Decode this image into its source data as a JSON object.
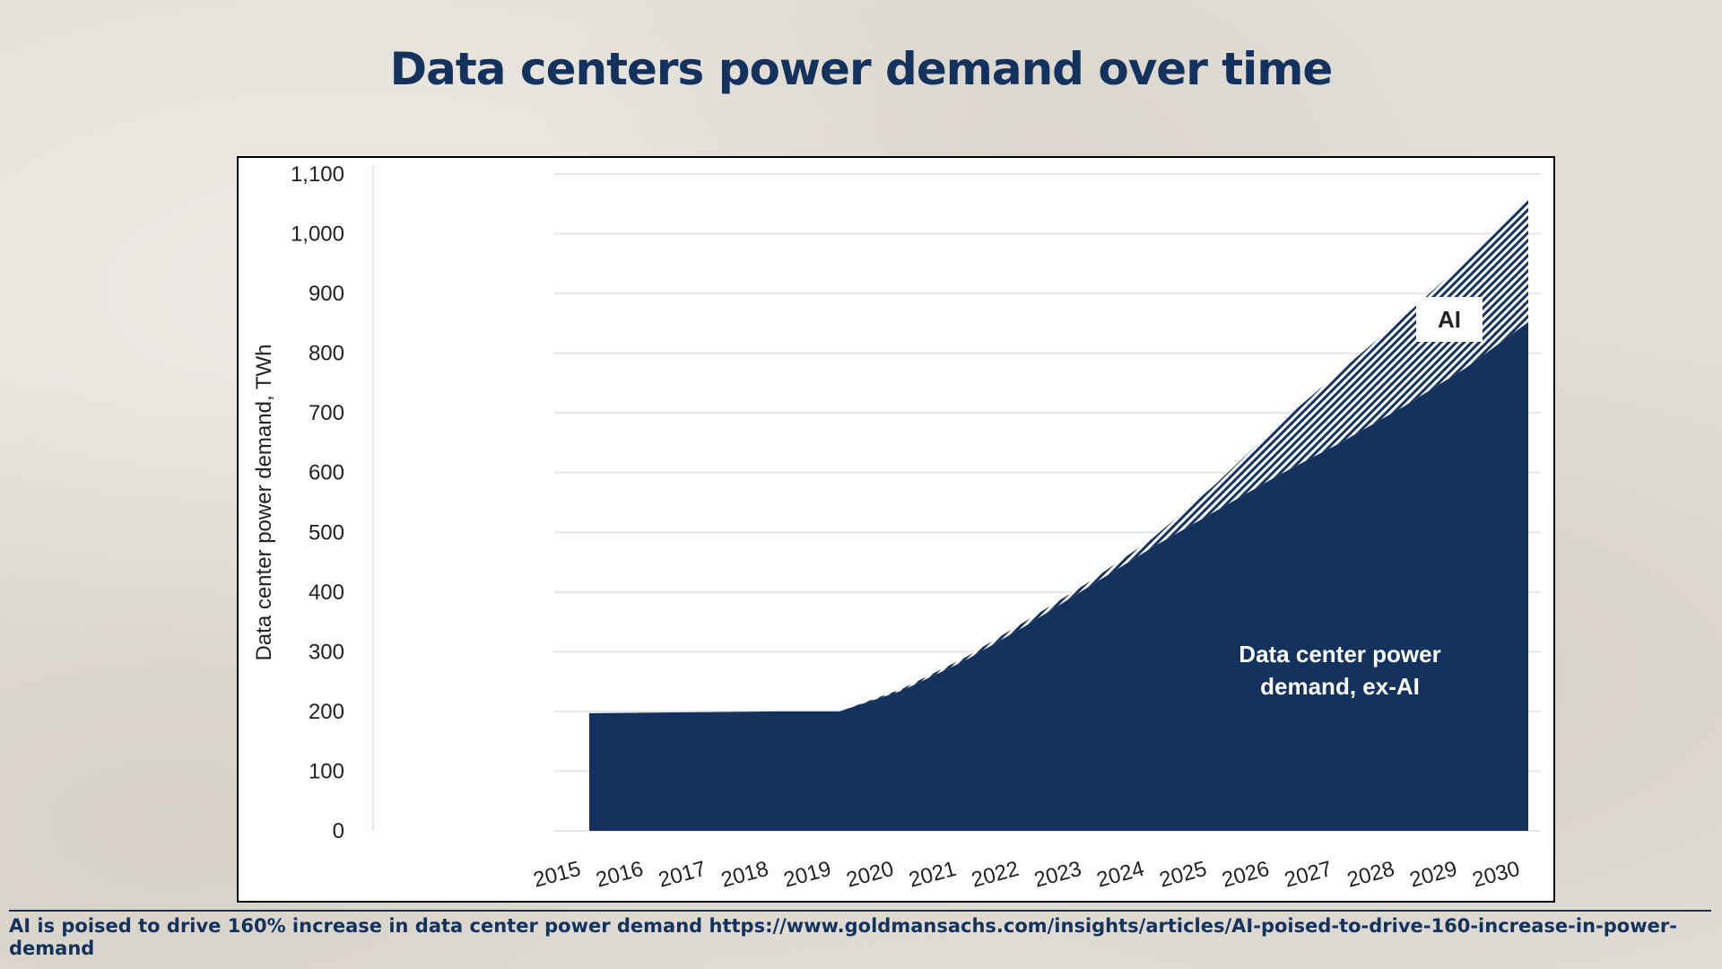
{
  "title": "Data centers power demand over time",
  "source": "AI is poised to drive 160% increase in data center power demand https://www.goldmansachs.com/insights/articles/AI-poised-to-drive-160-increase-in-power-demand",
  "colors": {
    "navy": "#14325e",
    "background": "#e4e0d8",
    "grid": "#e6e6e6"
  },
  "chart_data": {
    "type": "area",
    "stacked": true,
    "ylabel": "Data center power demand, TWh",
    "ylim": [
      0,
      1100
    ],
    "yticks": [
      0,
      100,
      200,
      300,
      400,
      500,
      600,
      700,
      800,
      900,
      1000,
      1100
    ],
    "ytick_labels": [
      "0",
      "100",
      "200",
      "300",
      "400",
      "500",
      "600",
      "700",
      "800",
      "900",
      "1,000",
      "1,100"
    ],
    "categories": [
      "2015",
      "2016",
      "2017",
      "2018",
      "2019",
      "2020",
      "2021",
      "2022",
      "2023",
      "2024",
      "2025",
      "2026",
      "2027",
      "2028",
      "2029",
      "2030"
    ],
    "grid": true,
    "series": [
      {
        "name": "Data center power demand, ex-AI",
        "fill": "solid navy",
        "values": [
          197,
          198,
          199,
          200,
          200,
          235,
          285,
          345,
          410,
          475,
          535,
          595,
          650,
          710,
          775,
          852
        ]
      },
      {
        "name": "AI",
        "fill": "hatched navy",
        "values": [
          0,
          0,
          0,
          0,
          0,
          3,
          5,
          8,
          8,
          15,
          45,
          85,
          120,
          150,
          180,
          210
        ]
      }
    ],
    "annotations": [
      {
        "text_lines": [
          "Data center power",
          "demand, ex-AI"
        ],
        "series": "Data center power demand, ex-AI"
      },
      {
        "text": "AI",
        "series": "AI"
      }
    ]
  }
}
